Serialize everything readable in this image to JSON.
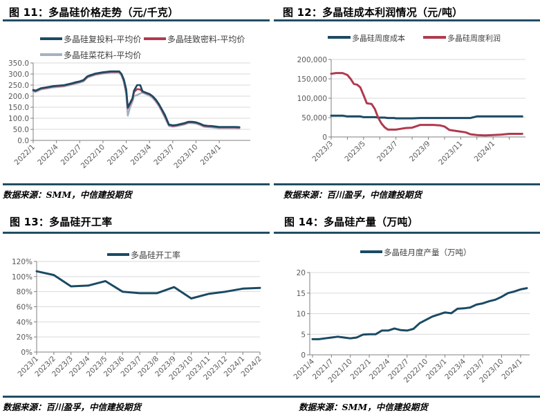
{
  "figures": [
    {
      "title": "图 11：多晶硅价格走势（元/千克）",
      "source": "数据来源：SMM，中信建投期货"
    },
    {
      "title": "图 12：多晶硅成本利润情况（元/吨）",
      "source": "数据来源：百川盈孚，中信建投期货"
    },
    {
      "title": "图 13：多晶硅开工率",
      "source": "数据来源：百川盈孚，中信建投期货"
    },
    {
      "title": "图 14：多晶硅产量（万吨）",
      "source": "数据来源：SMM，中信建投期货"
    }
  ],
  "colors": {
    "navy": "#1b4a63",
    "crimson": "#b03a4e",
    "grey_blue": "#a3b3c2",
    "grid": "#d9d9d9",
    "axis": "#7f7f7f",
    "divider": "#1f4e63",
    "tick_text": "#595959"
  },
  "chart_data": [
    {
      "type": "line",
      "title": "多晶硅价格走势（元/千克）",
      "xlabel": "",
      "ylabel": "元/千克",
      "ylim": [
        0,
        350
      ],
      "yticks": [
        "0.0",
        "50.0",
        "100.0",
        "150.0",
        "200.0",
        "250.0",
        "300.0",
        "350.0"
      ],
      "xticks": [
        "2022/1",
        "2022/4",
        "2022/7",
        "2022/10",
        "2023/1",
        "2023/4",
        "2023/7",
        "2023/10",
        "2024/1"
      ],
      "legend_position": "top",
      "grid": true,
      "x": [
        0,
        0.3,
        1,
        2,
        2.5,
        3,
        4,
        5,
        5.5,
        6,
        6.5,
        7,
        8,
        9,
        10,
        10.5,
        10.8,
        11.1,
        11.4,
        11.7,
        12,
        12.2,
        12.5,
        12.8,
        13,
        13.4,
        13.8,
        14.1,
        14.6,
        15,
        15.4,
        15.8,
        16.2,
        16.6,
        17,
        17.5,
        18,
        18.5,
        19,
        19.5,
        20,
        20.5,
        21,
        21.5,
        22,
        22.5,
        23,
        23.5,
        24,
        24.5,
        25,
        25.5,
        26,
        26.6
      ],
      "series": [
        {
          "name": "多晶硅复投料-平均价",
          "color": "#1b4a63",
          "values": [
            228,
            225,
            236,
            242,
            245,
            247,
            250,
            258,
            263,
            267,
            273,
            290,
            302,
            308,
            312,
            312,
            312,
            312,
            300,
            275,
            230,
            150,
            170,
            190,
            225,
            250,
            250,
            222,
            215,
            210,
            200,
            185,
            165,
            140,
            115,
            72,
            68,
            70,
            74,
            78,
            84,
            84,
            82,
            76,
            68,
            66,
            65,
            63,
            61,
            61,
            61,
            61,
            61,
            60
          ]
        },
        {
          "name": "多晶硅致密料-平均价",
          "color": "#b03a4e",
          "values": [
            226,
            223,
            234,
            240,
            243,
            245,
            248,
            256,
            261,
            265,
            271,
            288,
            300,
            306,
            310,
            310,
            310,
            310,
            298,
            270,
            222,
            145,
            165,
            185,
            218,
            232,
            230,
            220,
            213,
            208,
            198,
            182,
            162,
            137,
            110,
            70,
            66,
            68,
            72,
            76,
            82,
            82,
            80,
            74,
            66,
            64,
            63,
            61,
            59,
            59,
            59,
            59,
            59,
            58
          ]
        },
        {
          "name": "多晶硅菜花料-平均价",
          "color": "#a3b3c2",
          "values": [
            222,
            219,
            230,
            236,
            239,
            241,
            244,
            252,
            257,
            261,
            267,
            284,
            296,
            302,
            306,
            306,
            306,
            306,
            292,
            262,
            205,
            112,
            150,
            175,
            200,
            205,
            212,
            216,
            208,
            202,
            192,
            176,
            156,
            130,
            102,
            65,
            62,
            64,
            68,
            72,
            78,
            78,
            76,
            70,
            62,
            60,
            59,
            57,
            55,
            55,
            55,
            55,
            55,
            54
          ]
        }
      ]
    },
    {
      "type": "line",
      "title": "多晶硅成本利润情况（元/吨）",
      "xlabel": "",
      "ylabel": "元/吨",
      "ylim": [
        0,
        200000
      ],
      "yticks": [
        "0",
        "50,000",
        "100,000",
        "150,000",
        "200,000"
      ],
      "xticks": [
        "2023/3",
        "2023/5",
        "2023/7",
        "2023/9",
        "2023/11",
        "2024/1"
      ],
      "legend_position": "top",
      "grid": true,
      "x": [
        0,
        0.3,
        0.7,
        1,
        1.2,
        1.4,
        1.6,
        1.8,
        2,
        2.2,
        2.5,
        2.7,
        2.9,
        3.1,
        3.3,
        3.5,
        3.7,
        3.9,
        4,
        4.3,
        4.6,
        5,
        5.5,
        6,
        6.3,
        6.7,
        7,
        7.3,
        7.8,
        8.3,
        8.6,
        9,
        9.5,
        10,
        10.5,
        11,
        11.5,
        11.8
      ],
      "series": [
        {
          "name": "多晶硅周度成本",
          "color": "#1b4a63",
          "values": [
            55000,
            55000,
            55000,
            53000,
            53000,
            53000,
            53000,
            53000,
            51000,
            51000,
            51000,
            51000,
            50000,
            50000,
            50000,
            49000,
            49000,
            49000,
            48000,
            48000,
            48000,
            48000,
            49000,
            49000,
            49000,
            49000,
            49000,
            49000,
            49000,
            49000,
            49000,
            53000,
            53000,
            53000,
            53000,
            53000,
            53000,
            53000
          ]
        },
        {
          "name": "多晶硅周度利润",
          "color": "#b03a4e",
          "values": [
            163000,
            165000,
            165000,
            160000,
            150000,
            137000,
            135000,
            128000,
            108000,
            87000,
            85000,
            72000,
            50000,
            35000,
            25000,
            19000,
            19000,
            19000,
            19000,
            21000,
            23000,
            24000,
            31000,
            31000,
            31000,
            30000,
            27000,
            18000,
            15000,
            12000,
            7000,
            5000,
            4000,
            5000,
            6000,
            8000,
            8000,
            8000
          ]
        }
      ]
    },
    {
      "type": "line",
      "title": "多晶硅开工率",
      "xlabel": "",
      "ylabel": "",
      "ylim": [
        0,
        1.2
      ],
      "yticks": [
        "0%",
        "20%",
        "40%",
        "60%",
        "80%",
        "100%",
        "120%"
      ],
      "categories": [
        "2023/1",
        "2023/2",
        "2023/3",
        "2023/4",
        "2023/5",
        "2023/6",
        "2023/7",
        "2023/8",
        "2023/9",
        "2023/10",
        "2023/11",
        "2023/12",
        "2024/1",
        "2024/2"
      ],
      "legend_position": "top",
      "grid": true,
      "series": [
        {
          "name": "多晶硅开工率",
          "color": "#1b4a63",
          "values": [
            1.07,
            1.02,
            0.87,
            0.88,
            0.94,
            0.8,
            0.78,
            0.78,
            0.86,
            0.71,
            0.77,
            0.8,
            0.84,
            0.85
          ]
        }
      ]
    },
    {
      "type": "line",
      "title": "多晶硅产量（万吨）",
      "xlabel": "",
      "ylabel": "万吨",
      "ylim": [
        0,
        20
      ],
      "yticks": [
        "0",
        "5",
        "10",
        "15",
        "20"
      ],
      "xticks": [
        "2021/4",
        "2021/7",
        "2021/10",
        "2022/1",
        "2022/4",
        "2022/7",
        "2022/10",
        "2023/1",
        "2023/4",
        "2023/7",
        "2023/10",
        "2024/1"
      ],
      "legend_position": "top",
      "grid": true,
      "categories": [
        "2021/4",
        "2021/5",
        "2021/6",
        "2021/7",
        "2021/8",
        "2021/9",
        "2021/10",
        "2021/11",
        "2021/12",
        "2022/1",
        "2022/2",
        "2022/3",
        "2022/4",
        "2022/5",
        "2022/6",
        "2022/7",
        "2022/8",
        "2022/9",
        "2022/10",
        "2022/11",
        "2022/12",
        "2023/1",
        "2023/2",
        "2023/3",
        "2023/4",
        "2023/5",
        "2023/6",
        "2023/7",
        "2023/8",
        "2023/9",
        "2023/10",
        "2023/11",
        "2023/12",
        "2024/1",
        "2024/2"
      ],
      "series": [
        {
          "name": "多晶硅月度产量（万吨）",
          "color": "#1b4a63",
          "values": [
            3.8,
            3.8,
            4.0,
            4.2,
            4.4,
            4.2,
            4.0,
            4.2,
            4.9,
            5.0,
            5.0,
            5.9,
            5.9,
            6.4,
            6.0,
            5.9,
            6.3,
            7.7,
            8.5,
            9.3,
            9.8,
            10.3,
            10.1,
            11.2,
            11.3,
            11.5,
            12.2,
            12.5,
            13.0,
            13.4,
            14.1,
            15.0,
            15.4,
            15.9,
            16.2
          ]
        }
      ]
    }
  ]
}
